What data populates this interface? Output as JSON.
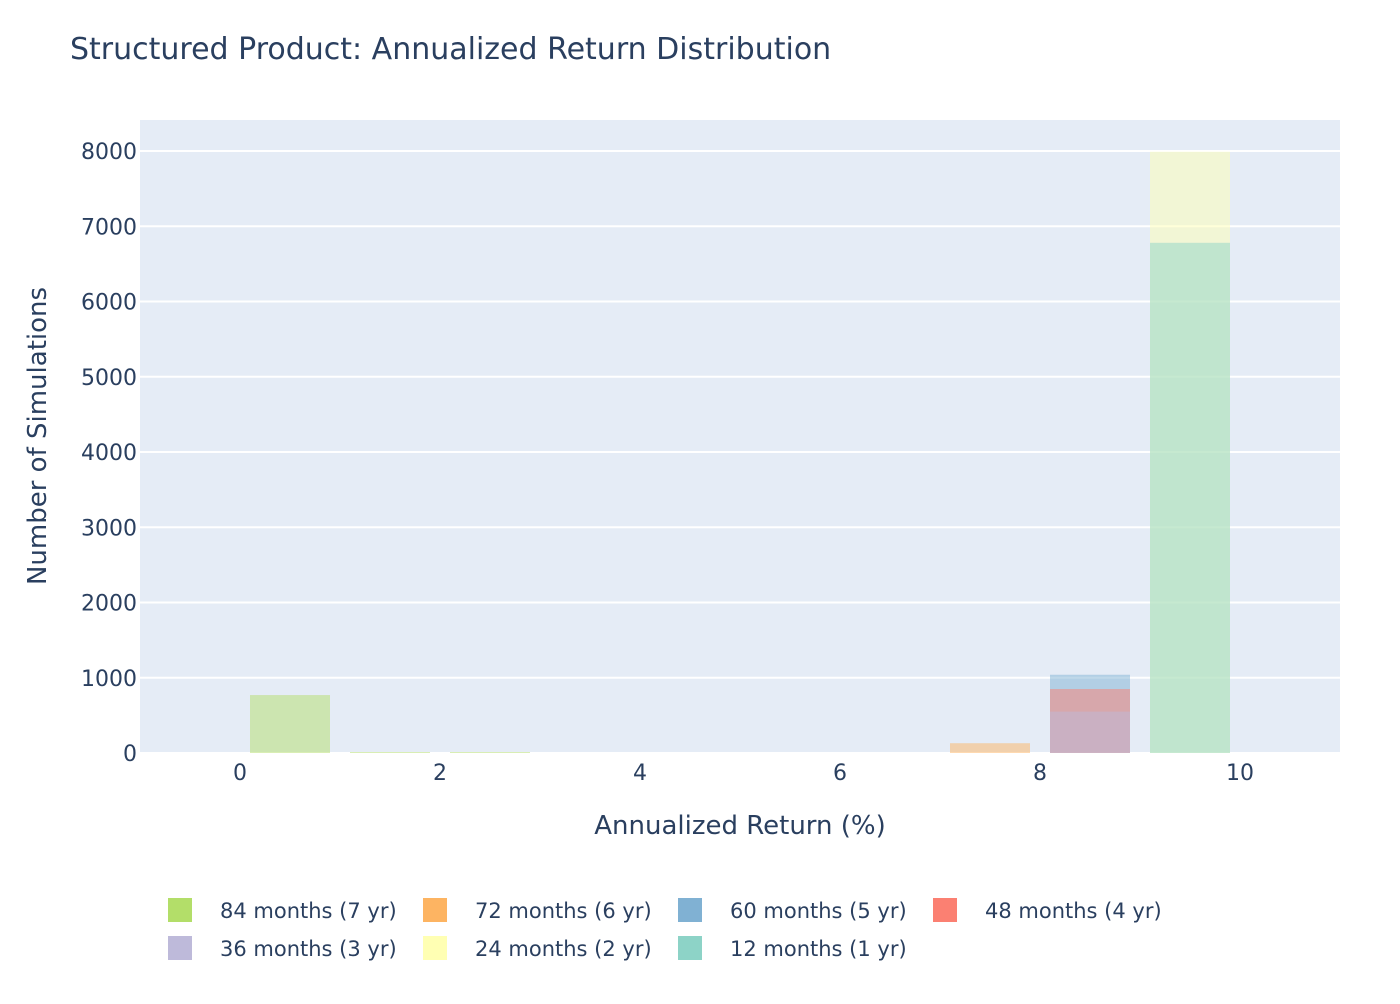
{
  "chart_data": {
    "type": "bar",
    "barmode": "overlay",
    "title": "Structured Product: Annualized Return Distribution",
    "xlabel": "Annualized Return (%)",
    "ylabel": "Number of Simulations",
    "xlim": [
      -1,
      11
    ],
    "ylim": [
      0,
      8400
    ],
    "x_ticks": [
      0,
      2,
      4,
      6,
      8,
      10
    ],
    "y_ticks": [
      0,
      1000,
      2000,
      3000,
      4000,
      5000,
      6000,
      7000,
      8000
    ],
    "bin_width": 1,
    "grid": true,
    "legend_position": "bottom",
    "plot_background": "#e5ecf6",
    "bar_opacity": 0.5,
    "series": [
      {
        "name": "84 months (7 yr)",
        "color": "#b3de69",
        "bins": [
          {
            "x0": 0,
            "x1": 1,
            "value": 770
          },
          {
            "x0": 1,
            "x1": 2,
            "value": 8
          },
          {
            "x0": 2,
            "x1": 3,
            "value": 6
          }
        ]
      },
      {
        "name": "72 months (6 yr)",
        "color": "#fdb462",
        "bins": [
          {
            "x0": 7,
            "x1": 8,
            "value": 130
          }
        ]
      },
      {
        "name": "60 months (5 yr)",
        "color": "#80b1d3",
        "bins": [
          {
            "x0": 8,
            "x1": 9,
            "value": 1040
          }
        ]
      },
      {
        "name": "48 months (4 yr)",
        "color": "#fb8072",
        "bins": [
          {
            "x0": 8,
            "x1": 9,
            "value": 850
          }
        ]
      },
      {
        "name": "36 months (3 yr)",
        "color": "#bebada",
        "bins": [
          {
            "x0": 8,
            "x1": 9,
            "value": 550
          }
        ]
      },
      {
        "name": "24 months (2 yr)",
        "color": "#ffffb3",
        "bins": [
          {
            "x0": 9,
            "x1": 10,
            "value": 7990
          }
        ]
      },
      {
        "name": "12 months (1 yr)",
        "color": "#8dd3c7",
        "bins": [
          {
            "x0": 9,
            "x1": 10,
            "value": 6780
          }
        ]
      }
    ]
  }
}
